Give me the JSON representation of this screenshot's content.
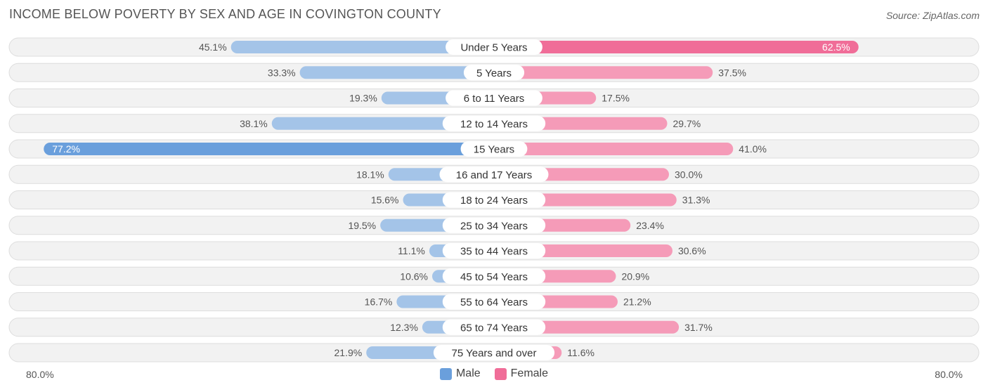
{
  "title": "INCOME BELOW POVERTY BY SEX AND AGE IN COVINGTON COUNTY",
  "source": "Source: ZipAtlas.com",
  "colors": {
    "male": "#a4c4e8",
    "male_strong": "#6a9fdc",
    "female": "#f59bb8",
    "female_strong": "#f06d98"
  },
  "chart_data": {
    "type": "bar",
    "orientation": "horizontal-diverging",
    "categories": [
      "Under 5 Years",
      "5 Years",
      "6 to 11 Years",
      "12 to 14 Years",
      "15 Years",
      "16 and 17 Years",
      "18 to 24 Years",
      "25 to 34 Years",
      "35 to 44 Years",
      "45 to 54 Years",
      "55 to 64 Years",
      "65 to 74 Years",
      "75 Years and over"
    ],
    "series": [
      {
        "name": "Male",
        "values": [
          45.1,
          33.3,
          19.3,
          38.1,
          77.2,
          18.1,
          15.6,
          19.5,
          11.1,
          10.6,
          16.7,
          12.3,
          21.9
        ],
        "labels": [
          "45.1%",
          "33.3%",
          "19.3%",
          "38.1%",
          "77.2%",
          "18.1%",
          "15.6%",
          "19.5%",
          "11.1%",
          "10.6%",
          "16.7%",
          "12.3%",
          "21.9%"
        ]
      },
      {
        "name": "Female",
        "values": [
          62.5,
          37.5,
          17.5,
          29.7,
          41.0,
          30.0,
          31.3,
          23.4,
          30.6,
          20.9,
          21.2,
          31.7,
          11.6
        ],
        "labels": [
          "62.5%",
          "37.5%",
          "17.5%",
          "29.7%",
          "41.0%",
          "30.0%",
          "31.3%",
          "23.4%",
          "30.6%",
          "20.9%",
          "21.2%",
          "31.7%",
          "11.6%"
        ]
      }
    ],
    "xlim": [
      -80,
      80
    ],
    "axis_labels": {
      "left": "80.0%",
      "right": "80.0%"
    },
    "legend": [
      "Male",
      "Female"
    ]
  }
}
